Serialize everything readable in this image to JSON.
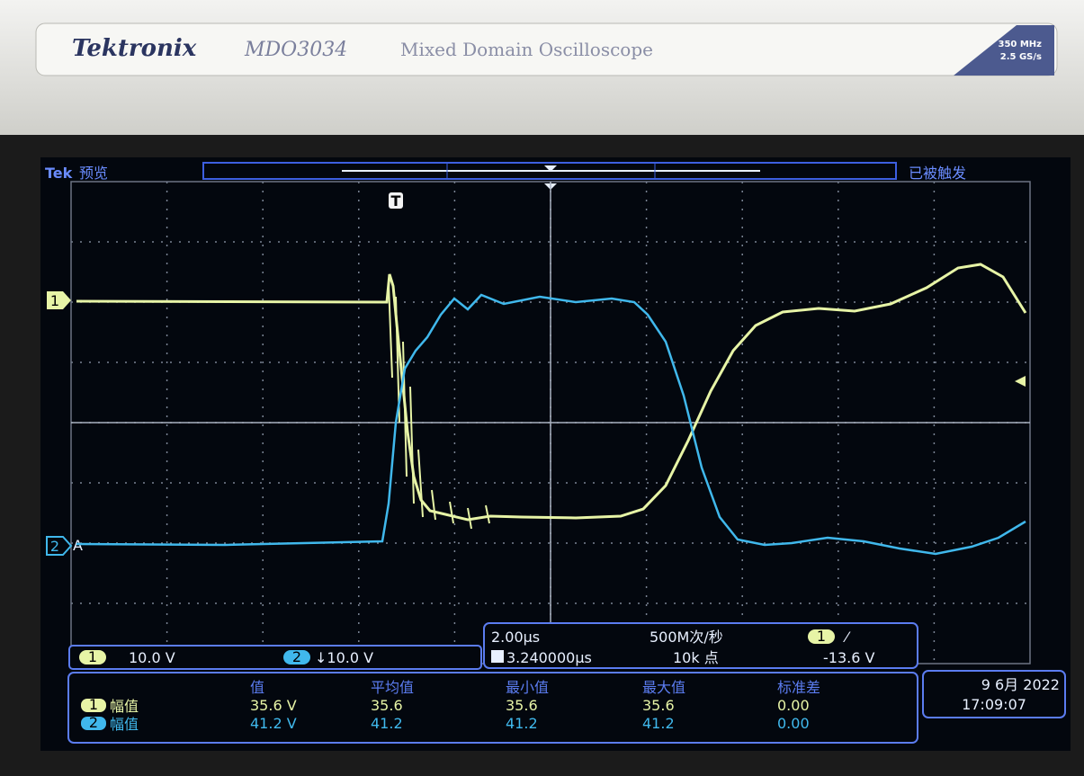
{
  "header": {
    "brand": "Tektronix",
    "model": "MDO3034",
    "description": "Mixed Domain Oscilloscope",
    "bandwidth": "350 MHz",
    "sample_rate": "2.5 GS/s"
  },
  "status": {
    "brand": "Tek",
    "mode": "预览",
    "trigger_state": "已被触发"
  },
  "markers": {
    "trigger": "T",
    "ch1": "1",
    "ch2": "2",
    "ch2_trigger_source": "A"
  },
  "channels": [
    {
      "label": "1",
      "scale": "10.0 V"
    },
    {
      "label": "2",
      "scale": "↓10.0 V"
    }
  ],
  "timebase": {
    "time_div": "2.00µs",
    "sample_rate": "500M次/秒",
    "trigger_label": "1",
    "trigger_edge": "⁄",
    "trigger_position": "3.240000µs",
    "record_length": "10k 点",
    "trigger_level": "-13.6 V"
  },
  "measurements": {
    "columns": [
      "值",
      "平均值",
      "最小值",
      "最大值",
      "标准差"
    ],
    "rows": [
      {
        "channel": "1",
        "name": "幅值",
        "cells": [
          "35.6 V",
          "35.6",
          "35.6",
          "35.6",
          "0.00"
        ]
      },
      {
        "channel": "2",
        "name": "幅值",
        "cells": [
          "41.2 V",
          "41.2",
          "41.2",
          "41.2",
          "0.00"
        ]
      }
    ]
  },
  "datetime": {
    "date": "9 6月 2022",
    "time": "17:09:07"
  }
}
